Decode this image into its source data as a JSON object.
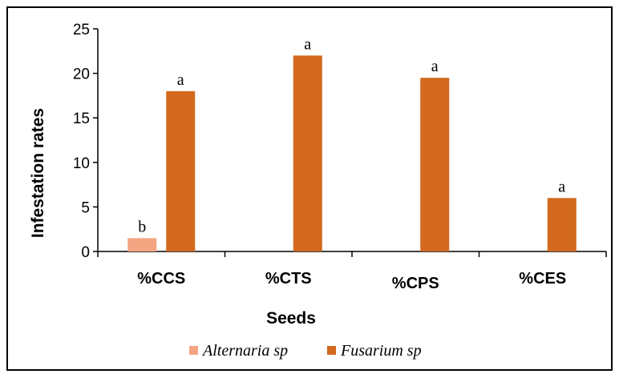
{
  "chart_data": {
    "type": "bar",
    "title": "",
    "xlabel": "Seeds",
    "ylabel": "Infestation rates",
    "categories": [
      "%CCS",
      "%CTS",
      "%CPS",
      "%CES"
    ],
    "ylim": [
      0,
      25
    ],
    "yticks": [
      0,
      5,
      10,
      15,
      20,
      25
    ],
    "grid": false,
    "legend_position": "bottom",
    "series": [
      {
        "name": "Alternaria sp",
        "color": "#f4a582",
        "values": [
          1.5,
          0,
          0,
          0
        ],
        "labels": [
          "b",
          "",
          "",
          ""
        ]
      },
      {
        "name": "Fusarium sp",
        "color": "#d2691e",
        "values": [
          18,
          22,
          19.5,
          6
        ],
        "labels": [
          "a",
          "a",
          "a",
          "a"
        ]
      }
    ]
  }
}
